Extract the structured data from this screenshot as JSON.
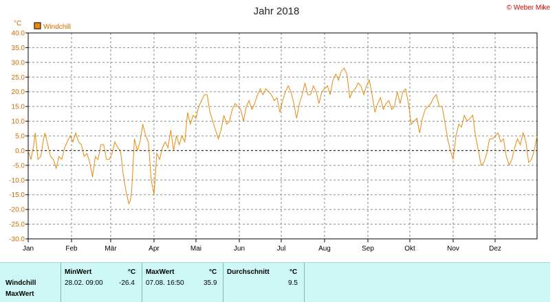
{
  "chart_data": {
    "type": "line",
    "title": "Jahr 2018",
    "copyright": "© Weber Mike",
    "unit": "°C",
    "legend": "Windchill",
    "series_color": "#e8890c",
    "ylim": [
      -30,
      40
    ],
    "yticks": [
      "40.0",
      "35.0",
      "30.0",
      "25.0",
      "20.0",
      "15.0",
      "10.0",
      "5.0",
      "0.0",
      "-5.0",
      "-10.0",
      "-15.0",
      "-20.0",
      "-25.0",
      "-30.0"
    ],
    "x_labels": [
      "Jan",
      "Feb",
      "Mär",
      "Apr",
      "Mai",
      "Jun",
      "Jul",
      "Aug",
      "Sep",
      "Okt",
      "Nov",
      "Dez"
    ],
    "grid": true,
    "zero_line": "dashed",
    "points": [
      [
        1,
        0
      ],
      [
        3,
        -3
      ],
      [
        5,
        2
      ],
      [
        6,
        6
      ],
      [
        8,
        -3
      ],
      [
        10,
        -2
      ],
      [
        12,
        4
      ],
      [
        13,
        6
      ],
      [
        15,
        2
      ],
      [
        17,
        -2
      ],
      [
        19,
        -3
      ],
      [
        21,
        -6
      ],
      [
        23,
        -2
      ],
      [
        25,
        -3
      ],
      [
        27,
        1
      ],
      [
        29,
        3
      ],
      [
        31,
        5
      ],
      [
        33,
        3
      ],
      [
        35,
        6
      ],
      [
        37,
        3
      ],
      [
        39,
        2
      ],
      [
        41,
        -2
      ],
      [
        43,
        -1
      ],
      [
        45,
        -4
      ],
      [
        47,
        -9
      ],
      [
        49,
        -2
      ],
      [
        51,
        -3
      ],
      [
        53,
        2
      ],
      [
        55,
        2
      ],
      [
        57,
        -3
      ],
      [
        59,
        -3
      ],
      [
        61,
        -1
      ],
      [
        63,
        3
      ],
      [
        65,
        1
      ],
      [
        67,
        0
      ],
      [
        69,
        -8
      ],
      [
        71,
        -14
      ],
      [
        73,
        -18
      ],
      [
        74,
        -17
      ],
      [
        75,
        -14
      ],
      [
        77,
        4
      ],
      [
        79,
        0
      ],
      [
        81,
        3
      ],
      [
        83,
        9
      ],
      [
        85,
        5
      ],
      [
        87,
        3
      ],
      [
        89,
        -10
      ],
      [
        91,
        -15
      ],
      [
        93,
        -1
      ],
      [
        95,
        -3
      ],
      [
        97,
        1
      ],
      [
        99,
        3
      ],
      [
        101,
        1
      ],
      [
        103,
        7
      ],
      [
        105,
        0
      ],
      [
        107,
        5
      ],
      [
        109,
        2
      ],
      [
        111,
        5
      ],
      [
        113,
        3
      ],
      [
        115,
        13
      ],
      [
        117,
        9
      ],
      [
        119,
        12
      ],
      [
        121,
        11
      ],
      [
        123,
        15
      ],
      [
        125,
        17
      ],
      [
        127,
        19
      ],
      [
        129,
        19
      ],
      [
        131,
        13
      ],
      [
        133,
        10
      ],
      [
        135,
        7
      ],
      [
        137,
        4
      ],
      [
        139,
        7
      ],
      [
        141,
        12
      ],
      [
        143,
        9
      ],
      [
        145,
        10
      ],
      [
        147,
        14
      ],
      [
        149,
        16
      ],
      [
        151,
        15
      ],
      [
        153,
        14
      ],
      [
        155,
        10
      ],
      [
        157,
        15
      ],
      [
        159,
        17
      ],
      [
        161,
        14
      ],
      [
        163,
        16
      ],
      [
        165,
        19
      ],
      [
        167,
        21
      ],
      [
        169,
        19
      ],
      [
        171,
        21
      ],
      [
        173,
        20
      ],
      [
        175,
        19
      ],
      [
        177,
        17
      ],
      [
        179,
        18
      ],
      [
        181,
        13
      ],
      [
        183,
        17
      ],
      [
        185,
        20
      ],
      [
        187,
        22
      ],
      [
        189,
        20
      ],
      [
        191,
        16
      ],
      [
        193,
        11
      ],
      [
        195,
        16
      ],
      [
        197,
        19
      ],
      [
        199,
        23
      ],
      [
        201,
        19
      ],
      [
        203,
        19
      ],
      [
        205,
        22
      ],
      [
        207,
        20
      ],
      [
        209,
        16
      ],
      [
        211,
        20
      ],
      [
        213,
        21
      ],
      [
        215,
        22
      ],
      [
        217,
        19
      ],
      [
        219,
        24
      ],
      [
        221,
        26
      ],
      [
        223,
        24
      ],
      [
        225,
        27
      ],
      [
        227,
        28
      ],
      [
        229,
        26
      ],
      [
        231,
        18
      ],
      [
        233,
        20
      ],
      [
        235,
        21
      ],
      [
        237,
        23
      ],
      [
        239,
        22
      ],
      [
        241,
        19
      ],
      [
        243,
        22
      ],
      [
        245,
        24
      ],
      [
        247,
        19
      ],
      [
        249,
        13
      ],
      [
        251,
        16
      ],
      [
        253,
        18
      ],
      [
        255,
        14
      ],
      [
        257,
        16
      ],
      [
        259,
        17
      ],
      [
        261,
        14
      ],
      [
        263,
        15
      ],
      [
        265,
        20
      ],
      [
        267,
        16
      ],
      [
        269,
        20
      ],
      [
        271,
        21
      ],
      [
        273,
        16
      ],
      [
        275,
        9
      ],
      [
        277,
        10
      ],
      [
        279,
        11
      ],
      [
        281,
        6
      ],
      [
        283,
        11
      ],
      [
        285,
        14
      ],
      [
        287,
        15
      ],
      [
        289,
        16
      ],
      [
        291,
        18
      ],
      [
        293,
        19
      ],
      [
        295,
        15
      ],
      [
        297,
        15
      ],
      [
        299,
        10
      ],
      [
        301,
        4
      ],
      [
        303,
        0
      ],
      [
        305,
        -3
      ],
      [
        307,
        5
      ],
      [
        309,
        9
      ],
      [
        311,
        8
      ],
      [
        313,
        12
      ],
      [
        315,
        10
      ],
      [
        317,
        11
      ],
      [
        319,
        12
      ],
      [
        321,
        5
      ],
      [
        323,
        0
      ],
      [
        325,
        -5
      ],
      [
        327,
        -4
      ],
      [
        329,
        -1
      ],
      [
        331,
        4
      ],
      [
        333,
        4
      ],
      [
        335,
        5
      ],
      [
        337,
        6
      ],
      [
        339,
        3
      ],
      [
        341,
        4
      ],
      [
        343,
        -2
      ],
      [
        345,
        -5
      ],
      [
        347,
        -3
      ],
      [
        349,
        1
      ],
      [
        351,
        4
      ],
      [
        353,
        2
      ],
      [
        355,
        6
      ],
      [
        357,
        3
      ],
      [
        359,
        -4
      ],
      [
        361,
        -3
      ],
      [
        363,
        0
      ],
      [
        365,
        5
      ]
    ],
    "stats": {
      "row_labels": [
        "Windchill",
        "MaxWert"
      ],
      "min_header": "MinWert",
      "max_header": "MaxWert",
      "avg_header": "Durchschnitt",
      "unit_header": "°C",
      "min_time": "28.02.  09:00",
      "min_value": "-26.4",
      "max_time": "07.08.  16:50",
      "max_value": "35.9",
      "avg_value": "9.5"
    }
  }
}
